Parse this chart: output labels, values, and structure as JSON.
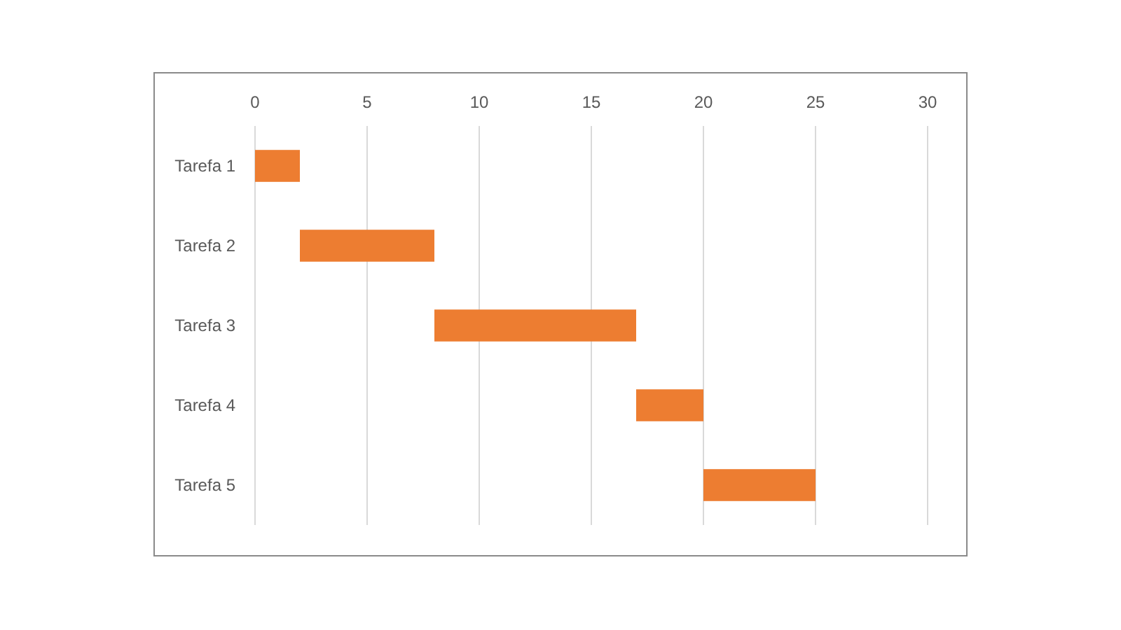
{
  "chart_data": {
    "type": "bar",
    "orientation": "horizontal",
    "categories": [
      "Tarefa 1",
      "Tarefa 2",
      "Tarefa 3",
      "Tarefa 4",
      "Tarefa 5"
    ],
    "values": [
      2,
      6,
      9,
      3,
      5
    ],
    "base": [
      0,
      2,
      8,
      17,
      20
    ],
    "color": "#ed7d31",
    "xlim": [
      0,
      30
    ],
    "xticks": [
      0,
      5,
      10,
      15,
      20,
      25,
      30
    ],
    "grid": "x"
  }
}
